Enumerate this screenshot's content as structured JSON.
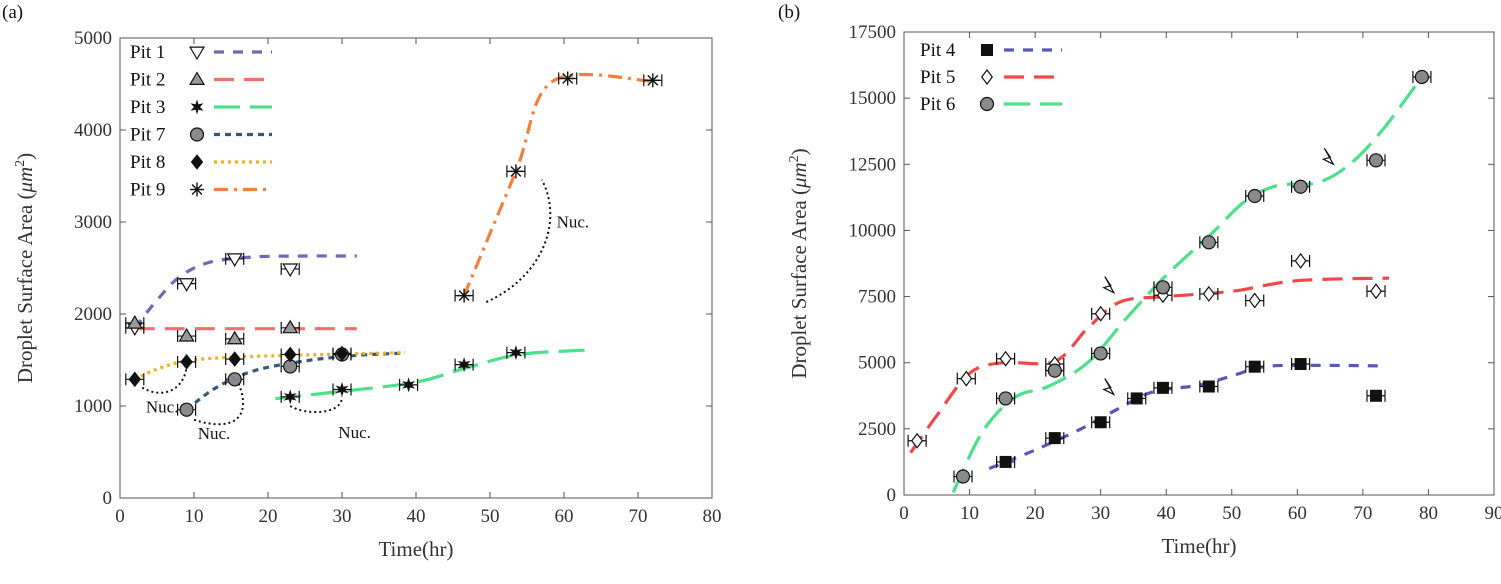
{
  "chart_data": [
    {
      "panel_label": "(a)",
      "type": "scatter",
      "xlabel": "Time(hr)",
      "ylabel": "Droplet Surface Area (μm²)",
      "ylabel_main": "Droplet Surface Area (",
      "ylabel_unit": "μm",
      "ylabel_sup": "2",
      "ylabel_close": ")",
      "xlim": [
        0,
        80
      ],
      "ylim": [
        0,
        5000
      ],
      "xticks": [
        0,
        10,
        20,
        30,
        40,
        50,
        60,
        70,
        80
      ],
      "yticks": [
        0,
        1000,
        2000,
        3000,
        4000,
        5000
      ],
      "grid": false,
      "legend_position": "top-left",
      "series": [
        {
          "name": "Pit 1",
          "marker": "triangle-down-open",
          "color": "#6a6ab8",
          "dash": "dash-medium",
          "points": [
            [
              2,
              1850
            ],
            [
              9,
              2330
            ],
            [
              15.5,
              2600
            ],
            [
              23,
              2490
            ]
          ],
          "fit": [
            [
              2,
              1850
            ],
            [
              5,
              2150
            ],
            [
              8,
              2400
            ],
            [
              12,
              2560
            ],
            [
              18,
              2620
            ],
            [
              25,
              2630
            ],
            [
              32,
              2630
            ]
          ]
        },
        {
          "name": "Pit 2",
          "marker": "triangle-up-gray",
          "color": "#f07070",
          "dash": "dash-long",
          "points": [
            [
              2,
              1900
            ],
            [
              9,
              1760
            ],
            [
              15.5,
              1730
            ],
            [
              23,
              1850
            ]
          ],
          "fit": [
            [
              2,
              1840
            ],
            [
              32,
              1840
            ]
          ]
        },
        {
          "name": "Pit 3",
          "marker": "star6",
          "color": "#4ce08a",
          "dash": "dash-xlong",
          "points": [
            [
              23,
              1100
            ],
            [
              30,
              1180
            ],
            [
              39,
              1230
            ],
            [
              46.5,
              1450
            ],
            [
              53.5,
              1580
            ]
          ],
          "fit": [
            [
              21,
              1080
            ],
            [
              30,
              1160
            ],
            [
              40,
              1260
            ],
            [
              47,
              1420
            ],
            [
              54,
              1560
            ],
            [
              63.5,
              1610
            ]
          ]
        },
        {
          "name": "Pit 7",
          "marker": "circle-gray",
          "color": "#33597d",
          "dash": "dash-short",
          "points": [
            [
              9,
              960
            ],
            [
              15.5,
              1290
            ],
            [
              23,
              1430
            ],
            [
              30,
              1560
            ]
          ],
          "fit": [
            [
              9,
              960
            ],
            [
              13,
              1200
            ],
            [
              18,
              1380
            ],
            [
              25,
              1490
            ],
            [
              32,
              1550
            ],
            [
              38.5,
              1575
            ]
          ]
        },
        {
          "name": "Pit 8",
          "marker": "diamond-black",
          "color": "#f0b020",
          "dash": "dot",
          "points": [
            [
              2,
              1290
            ],
            [
              9,
              1480
            ],
            [
              15.5,
              1510
            ],
            [
              23,
              1560
            ],
            [
              30,
              1570
            ]
          ],
          "fit": [
            [
              2,
              1290
            ],
            [
              5,
              1400
            ],
            [
              9,
              1490
            ],
            [
              15,
              1530
            ],
            [
              23,
              1550
            ],
            [
              30,
              1565
            ],
            [
              38.5,
              1580
            ]
          ]
        },
        {
          "name": "Pit 9",
          "marker": "asterisk",
          "color": "#f08040",
          "dash": "dash-dot",
          "points": [
            [
              46.5,
              2200
            ],
            [
              53.5,
              3550
            ],
            [
              60.5,
              4560
            ],
            [
              72,
              4540
            ]
          ],
          "fit": [
            [
              46.5,
              2200
            ],
            [
              53.5,
              3550
            ],
            [
              58.5,
              4530
            ],
            [
              72,
              4530
            ]
          ]
        }
      ],
      "annotations": [
        {
          "text": "Nuc.",
          "x": 3.5,
          "y": 930
        },
        {
          "text": "Nuc.",
          "x": 10.5,
          "y": 640
        },
        {
          "text": "Nuc.",
          "x": 29.5,
          "y": 650
        },
        {
          "text": "Nuc.",
          "x": 59,
          "y": 2940
        }
      ]
    },
    {
      "panel_label": "(b)",
      "type": "scatter",
      "xlabel": "Time(hr)",
      "ylabel": "Droplet Surface Area (μm²)",
      "ylabel_main": "Droplet Surface Area (",
      "ylabel_unit": "μm",
      "ylabel_sup": "2",
      "ylabel_close": ")",
      "xlim": [
        0,
        90
      ],
      "ylim": [
        0,
        17500
      ],
      "xticks": [
        0,
        10,
        20,
        30,
        40,
        50,
        60,
        70,
        80,
        90
      ],
      "yticks": [
        0,
        2500,
        5000,
        7500,
        10000,
        12500,
        15000,
        17500
      ],
      "grid": false,
      "legend_position": "top-left",
      "series": [
        {
          "name": "Pit 4",
          "marker": "square-black",
          "color": "#5858b8",
          "dash": "dash-medium",
          "points": [
            [
              15.5,
              1250
            ],
            [
              23,
              2150
            ],
            [
              30,
              2750
            ],
            [
              35.5,
              3650
            ],
            [
              39.5,
              4050
            ],
            [
              46.5,
              4100
            ],
            [
              53.5,
              4850
            ],
            [
              60.5,
              4950
            ],
            [
              72,
              3750
            ]
          ],
          "fit": [
            [
              13,
              1000
            ],
            [
              20,
              1700
            ],
            [
              27,
              2500
            ],
            [
              33,
              3300
            ],
            [
              38,
              3900
            ],
            [
              45,
              4150
            ],
            [
              50,
              4500
            ],
            [
              55,
              4850
            ],
            [
              62,
              4900
            ],
            [
              73,
              4880
            ]
          ]
        },
        {
          "name": "Pit 5",
          "marker": "diamond-open",
          "color": "#f04848",
          "dash": "dash-long",
          "points": [
            [
              2,
              2050
            ],
            [
              9.5,
              4400
            ],
            [
              15.5,
              5150
            ],
            [
              23,
              4950
            ],
            [
              30,
              6850
            ],
            [
              39.5,
              7550
            ],
            [
              46.5,
              7600
            ],
            [
              53.5,
              7350
            ],
            [
              60.5,
              8850
            ],
            [
              72,
              7700
            ]
          ],
          "fit": [
            [
              1,
              1600
            ],
            [
              5,
              3000
            ],
            [
              10,
              4600
            ],
            [
              15,
              5000
            ],
            [
              23,
              5050
            ],
            [
              28,
              6300
            ],
            [
              33,
              7300
            ],
            [
              40,
              7500
            ],
            [
              50,
              7700
            ],
            [
              60,
              8100
            ],
            [
              74,
              8200
            ]
          ]
        },
        {
          "name": "Pit 6",
          "marker": "circle-gray",
          "color": "#4ce08a",
          "dash": "dash-xlong",
          "points": [
            [
              9,
              700
            ],
            [
              15.5,
              3650
            ],
            [
              23,
              4700
            ],
            [
              30,
              5350
            ],
            [
              39.5,
              7850
            ],
            [
              46.5,
              9550
            ],
            [
              53.5,
              11300
            ],
            [
              60.5,
              11650
            ],
            [
              72,
              12650
            ],
            [
              79,
              15800
            ]
          ],
          "fit": [
            [
              7.5,
              100
            ],
            [
              12,
              2400
            ],
            [
              17,
              3700
            ],
            [
              22,
              4100
            ],
            [
              28,
              5000
            ],
            [
              34,
              6700
            ],
            [
              40,
              8300
            ],
            [
              47,
              9900
            ],
            [
              52,
              11100
            ],
            [
              57,
              11700
            ],
            [
              63,
              11800
            ],
            [
              68,
              12500
            ],
            [
              73,
              13800
            ],
            [
              79,
              15800
            ]
          ]
        }
      ],
      "arrows": [
        {
          "x": 32,
          "y": 7650
        },
        {
          "x": 32,
          "y": 3800
        },
        {
          "x": 65.5,
          "y": 12500
        }
      ]
    }
  ]
}
